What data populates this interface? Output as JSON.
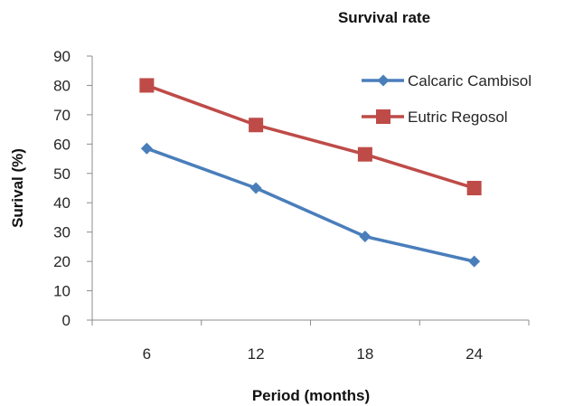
{
  "chart_data": {
    "type": "line",
    "title": "Survival rate",
    "xlabel": "Period (months)",
    "ylabel": "Surival (%)",
    "categories": [
      "6",
      "12",
      "18",
      "24"
    ],
    "ylim": [
      0,
      90
    ],
    "yticks": [
      0,
      10,
      20,
      30,
      40,
      50,
      60,
      70,
      80,
      90
    ],
    "grid": false,
    "legend_position": "top-right",
    "series": [
      {
        "name": "Calcaric Cambisol",
        "values": [
          58.5,
          45,
          28.5,
          20
        ],
        "color": "#4a7ebb",
        "marker": "diamond"
      },
      {
        "name": "Eutric Regosol",
        "values": [
          80,
          66.5,
          56.5,
          45
        ],
        "color": "#be4b48",
        "marker": "square"
      }
    ]
  }
}
